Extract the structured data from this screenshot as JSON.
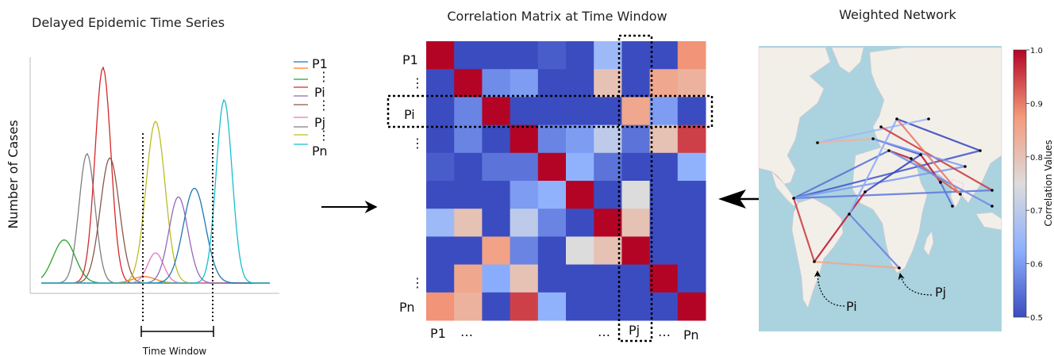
{
  "panels": {
    "timeseries": {
      "title": "Delayed Epidemic Time Series",
      "ylabel": "Number of Cases",
      "window_label": "Time Window",
      "legend": [
        {
          "label": "P1",
          "color": "#1f77b4"
        },
        {
          "label": "⋮",
          "color": "#ff7f0e"
        },
        {
          "label": "Pi",
          "color": "#2ca02c"
        },
        {
          "label": "⋮",
          "color": "#d62728"
        },
        {
          "label": "Pj",
          "color": "#9467bd"
        },
        {
          "label": "⋮",
          "color": "#8c564b"
        },
        {
          "label": "Pn",
          "color": "#e377c2"
        }
      ]
    },
    "matrix": {
      "title": "Correlation Matrix at Time Window",
      "row_labels": [
        "P1",
        "⋮",
        "Pi",
        "⋮",
        "⋮",
        "Pn"
      ],
      "col_labels": [
        "P1",
        "…",
        "…",
        "Pj",
        "…",
        "Pn"
      ]
    },
    "network": {
      "title": "Weighted Network",
      "colorbar_label": "Correlation Values",
      "colorbar_ticks": [
        "1.0",
        "0.9",
        "0.8",
        "0.7",
        "0.6",
        "0.5"
      ],
      "node_labels": [
        "Pi",
        "Pj"
      ]
    }
  },
  "chart_data": [
    {
      "type": "line",
      "title": "Delayed Epidemic Time Series",
      "ylabel": "Number of Cases",
      "series": [
        {
          "color": "#7f7f7f",
          "values": [
            0.6,
            0.2
          ]
        },
        {
          "color": "#8c564b",
          "values": [
            0.58,
            0.3
          ]
        },
        {
          "color": "#2ca02c",
          "values": [
            0.2,
            0.1
          ]
        },
        {
          "color": "#d62728",
          "values": [
            1.0,
            0.27
          ]
        },
        {
          "color": "#bcbd22",
          "values": [
            0.75,
            0.5
          ]
        },
        {
          "color": "#ff7f0e",
          "values": [
            0.03,
            0.45
          ]
        },
        {
          "color": "#e377c2",
          "values": [
            0.14,
            0.5
          ]
        },
        {
          "color": "#9467bd",
          "values": [
            0.4,
            0.6
          ]
        },
        {
          "color": "#1f77b4",
          "values": [
            0.44,
            0.67
          ]
        },
        {
          "color": "#17becf",
          "values": [
            0.85,
            0.8
          ]
        }
      ]
    },
    {
      "type": "heatmap",
      "title": "Correlation Matrix at Time Window",
      "values": [
        [
          1.0,
          0.5,
          0.5,
          0.5,
          0.52,
          0.5,
          0.65,
          0.5,
          0.5,
          0.88
        ],
        [
          0.5,
          1.0,
          0.58,
          0.6,
          0.5,
          0.5,
          0.8,
          0.5,
          0.85,
          0.83
        ],
        [
          0.5,
          0.57,
          1.0,
          0.5,
          0.5,
          0.5,
          0.5,
          0.85,
          0.6,
          0.5
        ],
        [
          0.5,
          0.57,
          0.5,
          1.0,
          0.57,
          0.6,
          0.7,
          0.55,
          0.8,
          0.95
        ],
        [
          0.52,
          0.5,
          0.55,
          0.55,
          1.0,
          0.63,
          0.55,
          0.5,
          0.5,
          0.63
        ],
        [
          0.5,
          0.5,
          0.5,
          0.6,
          0.63,
          1.0,
          0.5,
          0.75,
          0.5,
          0.5
        ],
        [
          0.65,
          0.8,
          0.5,
          0.7,
          0.57,
          0.5,
          1.0,
          0.8,
          0.5,
          0.5
        ],
        [
          0.5,
          0.5,
          0.86,
          0.57,
          0.5,
          0.75,
          0.8,
          1.0,
          0.5,
          0.5
        ],
        [
          0.5,
          0.85,
          0.62,
          0.8,
          0.5,
          0.5,
          0.5,
          0.5,
          1.0,
          0.5
        ],
        [
          0.88,
          0.83,
          0.5,
          0.95,
          0.63,
          0.5,
          0.5,
          0.5,
          0.5,
          1.0
        ]
      ],
      "colormap": "coolwarm",
      "vmin": 0.5,
      "vmax": 1.0
    }
  ]
}
